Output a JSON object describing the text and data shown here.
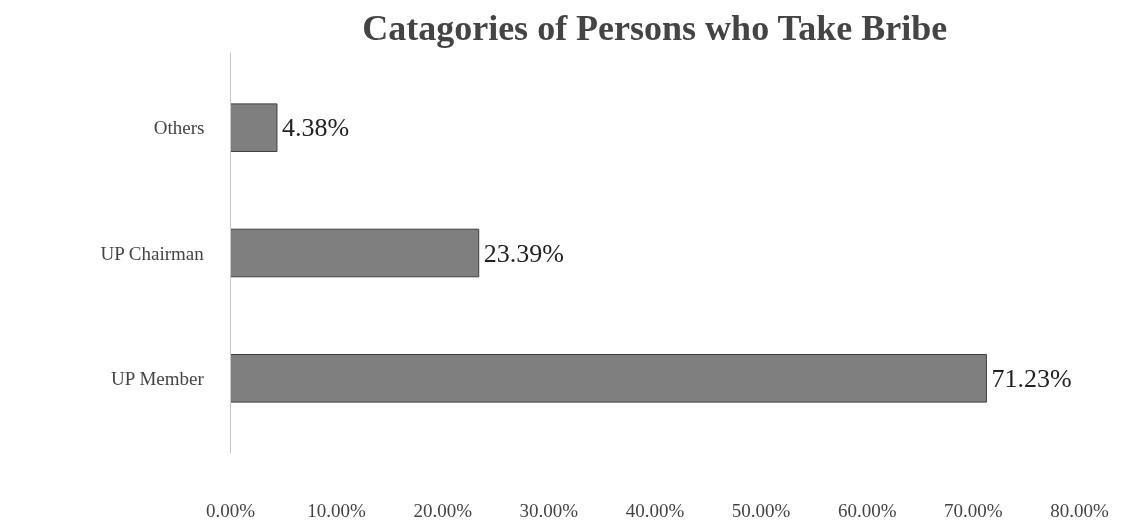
{
  "chart_data": {
    "type": "bar",
    "orientation": "horizontal",
    "title": "Catagories of Persons who Take Bribe",
    "categories": [
      "Others",
      "UP Chairman",
      "UP Member"
    ],
    "values": [
      4.38,
      23.39,
      71.23
    ],
    "value_labels": [
      "4.38%",
      "23.39%",
      "71.23%"
    ],
    "color": "#7f7f7f",
    "xlim": [
      0,
      80
    ],
    "xticks": [
      {
        "value": 0,
        "label": "0.00%"
      },
      {
        "value": 10,
        "label": "10.00%"
      },
      {
        "value": 20,
        "label": "20.00%"
      },
      {
        "value": 30,
        "label": "30.00%"
      },
      {
        "value": 40,
        "label": "40.00%"
      },
      {
        "value": 50,
        "label": "50.00%"
      },
      {
        "value": 60,
        "label": "60.00%"
      },
      {
        "value": 70,
        "label": "70.00%"
      },
      {
        "value": 80,
        "label": "80.00%"
      }
    ],
    "grid": false
  }
}
